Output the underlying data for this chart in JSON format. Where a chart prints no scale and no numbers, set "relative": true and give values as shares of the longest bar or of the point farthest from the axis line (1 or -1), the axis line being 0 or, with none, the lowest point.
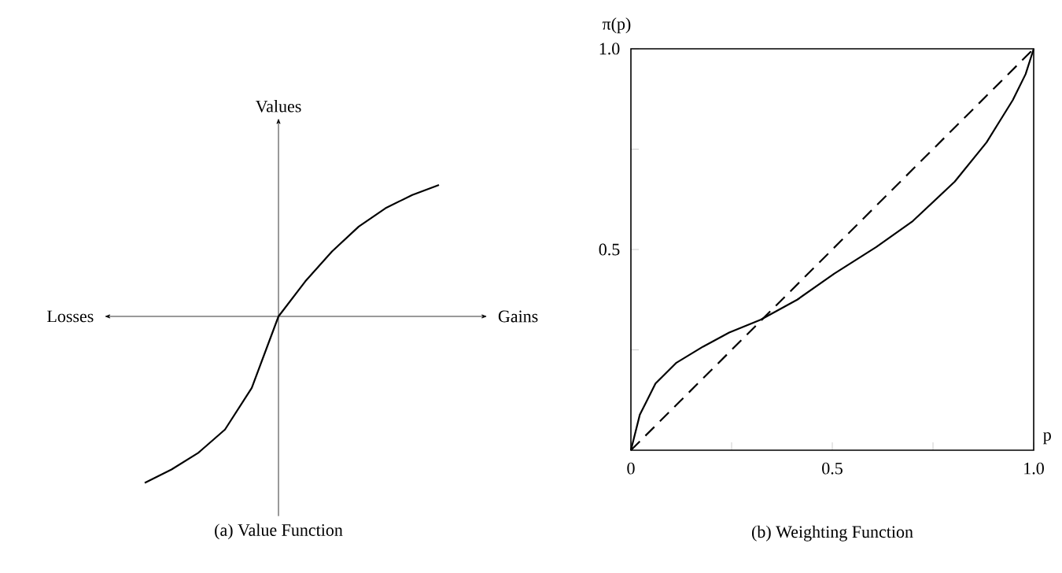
{
  "chart_data": [
    {
      "type": "line",
      "title": "(a) Value Function",
      "xlabel": "Gains",
      "ylabel": "Values",
      "annotations": [
        "Losses"
      ],
      "relative": true,
      "categories": [
        null,
        null,
        null,
        null,
        null,
        null,
        null,
        null,
        null,
        null,
        null,
        null
      ],
      "series": [
        {
          "color": "#000000",
          "values": [
            -1,
            -0.92,
            -0.82,
            -0.68,
            -0.43,
            0,
            0.21,
            0.39,
            0.54,
            0.65,
            0.73,
            0.79
          ]
        }
      ]
    },
    {
      "type": "line",
      "title": "(b) Weighting Function",
      "xlabel": "p",
      "ylabel": "π(p)",
      "xlim": [
        0,
        1
      ],
      "ylim": [
        0,
        1
      ],
      "xticks": [
        0,
        {
          "value": 0.25,
          "label": null
        },
        0.5,
        {
          "value": 0.75,
          "label": null
        },
        {
          "value": 1,
          "label": "1.0"
        }
      ],
      "yticks": [
        {
          "value": 0.25,
          "label": null
        },
        0.5,
        {
          "value": 0.75,
          "label": null
        },
        {
          "value": 1,
          "label": "1.0"
        }
      ],
      "series": [
        {
          "color": "#000000",
          "x": [
            0,
            0.022,
            0.061,
            0.113,
            0.179,
            0.244,
            0.322,
            0.413,
            0.505,
            0.609,
            0.7,
            0.804,
            0.883,
            0.948,
            0.98,
            1
          ],
          "values": [
            0,
            0.088,
            0.166,
            0.218,
            0.258,
            0.293,
            0.325,
            0.375,
            0.44,
            0.506,
            0.571,
            0.669,
            0.767,
            0.872,
            0.937,
            1
          ]
        },
        {
          "color": "#000000",
          "line_style": "dashed",
          "x": [
            0,
            1
          ],
          "values": [
            0,
            1
          ]
        }
      ]
    }
  ]
}
